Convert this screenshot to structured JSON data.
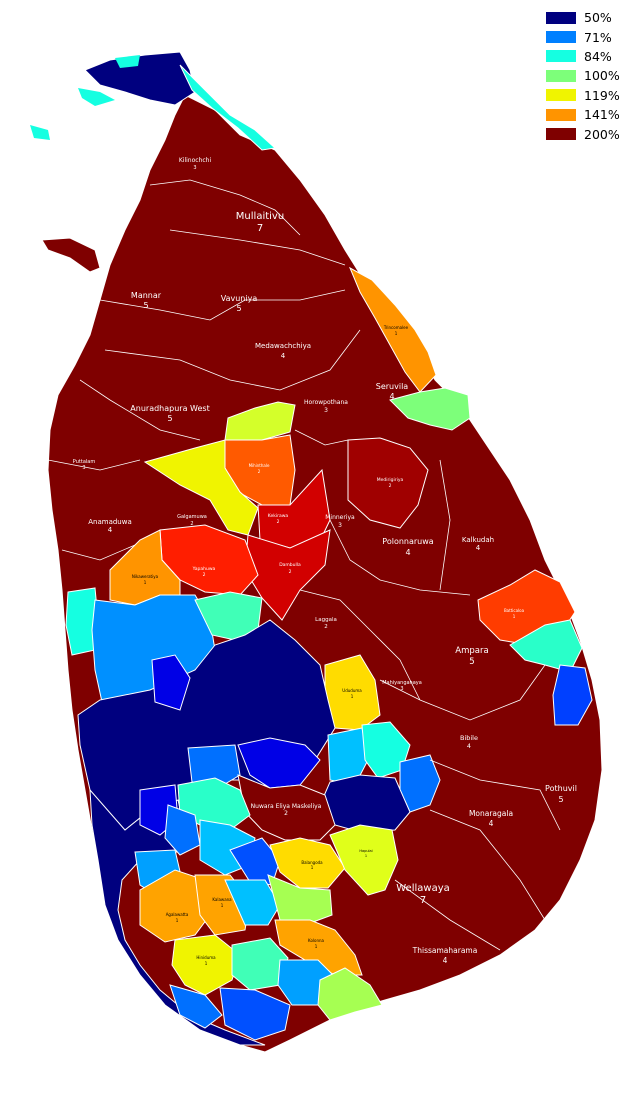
{
  "legend": [
    {
      "label": "50%",
      "color": "#00007f"
    },
    {
      "label": "71%",
      "color": "#0080ff"
    },
    {
      "label": "84%",
      "color": "#15ffe1"
    },
    {
      "label": "100%",
      "color": "#7dff7a"
    },
    {
      "label": "119%",
      "color": "#f0f400"
    },
    {
      "label": "141%",
      "color": "#ff9400"
    },
    {
      "label": "200%",
      "color": "#7f0000"
    }
  ],
  "regions": [
    {
      "name": "Kilinochchi",
      "value": "3"
    },
    {
      "name": "Mullaitivu",
      "value": "7"
    },
    {
      "name": "Mannar",
      "value": "5"
    },
    {
      "name": "Vavuniya",
      "value": "5"
    },
    {
      "name": "Medawachchiya",
      "value": "4"
    },
    {
      "name": "Trincomalee",
      "value": "1"
    },
    {
      "name": "Seruvila",
      "value": "4"
    },
    {
      "name": "Horowpothana",
      "value": "3"
    },
    {
      "name": "Anuradhapura West",
      "value": "5"
    },
    {
      "name": "Puttalam",
      "value": "3"
    },
    {
      "name": "Mihinthale",
      "value": "2"
    },
    {
      "name": "Medirigiriya",
      "value": "2"
    },
    {
      "name": "Kekirawa",
      "value": "2"
    },
    {
      "name": "Galgamuwa",
      "value": "2"
    },
    {
      "name": "Minneriya",
      "value": "3"
    },
    {
      "name": "Anamaduwa",
      "value": "4"
    },
    {
      "name": "Polonnaruwa",
      "value": "4"
    },
    {
      "name": "Kalkudah",
      "value": "4"
    },
    {
      "name": "Nikaweratiya",
      "value": "1"
    },
    {
      "name": "Yapahuwa",
      "value": "2"
    },
    {
      "name": "Dambulla",
      "value": "2"
    },
    {
      "name": "Batticaloa",
      "value": "1"
    },
    {
      "name": "Laggala",
      "value": "2"
    },
    {
      "name": "Ampara",
      "value": "5"
    },
    {
      "name": "Ududuma",
      "value": "1"
    },
    {
      "name": "Mahiyanganaya",
      "value": "3"
    },
    {
      "name": "Bibile",
      "value": "4"
    },
    {
      "name": "Pothuvil",
      "value": "5"
    },
    {
      "name": "Nuwara Eliya Maskeliya",
      "value": "2"
    },
    {
      "name": "Monaragala",
      "value": "4"
    },
    {
      "name": "Hapulai",
      "value": "1"
    },
    {
      "name": "Balangoda",
      "value": "1"
    },
    {
      "name": "Wellawaya",
      "value": "7"
    },
    {
      "name": "Agalawatta",
      "value": "1"
    },
    {
      "name": "Kalawana",
      "value": "1"
    },
    {
      "name": "Kolonna",
      "value": "1"
    },
    {
      "name": "Thissamaharama",
      "value": "4"
    },
    {
      "name": "Hiniduma",
      "value": "1"
    }
  ]
}
